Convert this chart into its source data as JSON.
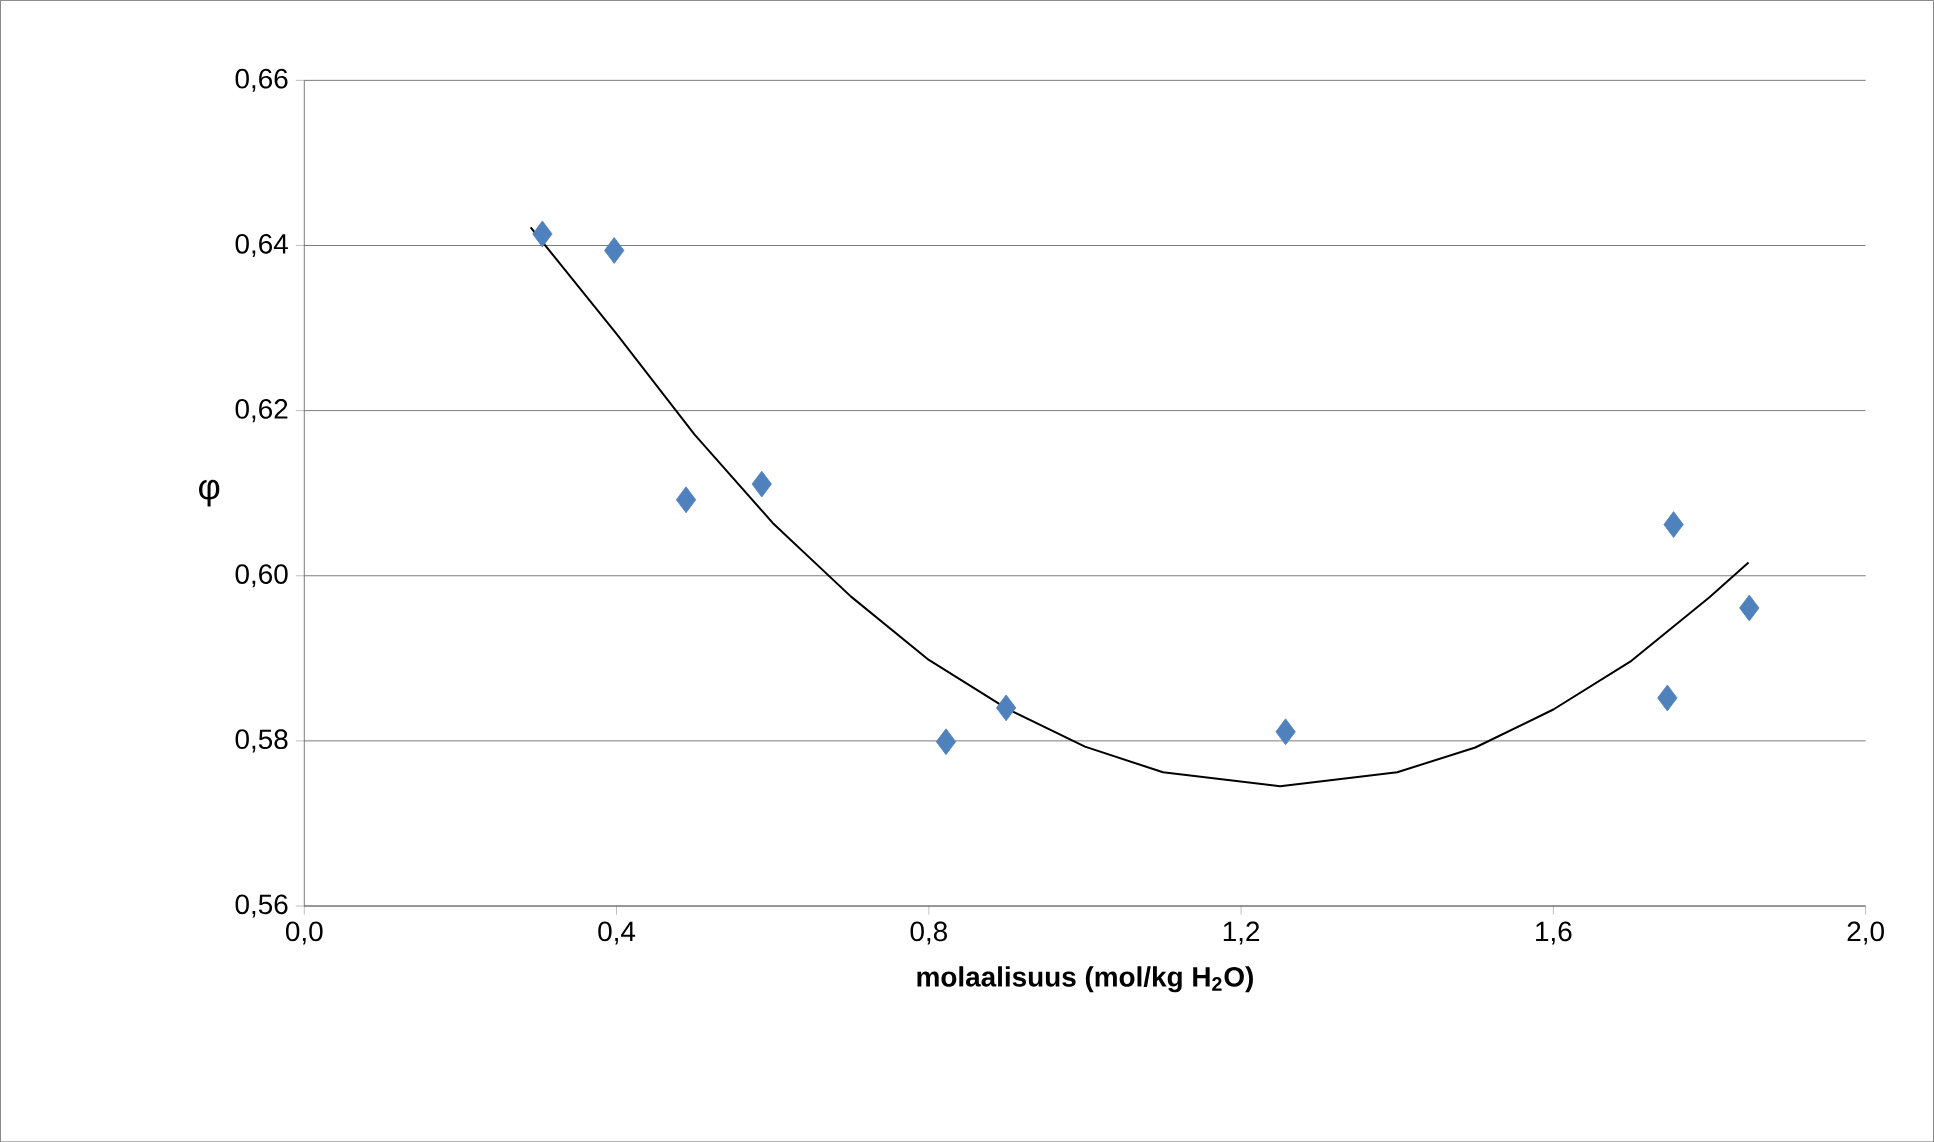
{
  "chart_data": {
    "type": "scatter",
    "xlabel": "molaalisuus (mol/kg H$_{2}$O)",
    "ylabel": "φ",
    "xlim": [
      0,
      2
    ],
    "ylim": [
      0.56,
      0.66
    ],
    "xticks": [
      {
        "value": 0,
        "label": "0,0"
      },
      {
        "value": 0.4,
        "label": "0,4"
      },
      {
        "value": 0.8,
        "label": "0,8"
      },
      {
        "value": 1.2,
        "label": "1,2"
      },
      {
        "value": 1.6,
        "label": "1,6"
      },
      {
        "value": 2.0,
        "label": "2,0"
      }
    ],
    "yticks": [
      {
        "value": 0.56,
        "label": "0,56"
      },
      {
        "value": 0.58,
        "label": "0,58"
      },
      {
        "value": 0.6,
        "label": "0,60"
      },
      {
        "value": 0.62,
        "label": "0,62"
      },
      {
        "value": 0.64,
        "label": "0,64"
      },
      {
        "value": 0.66,
        "label": "0,66"
      }
    ],
    "grid": "y",
    "series": [
      {
        "marker": "diamond",
        "color": "#4f81bd",
        "x": [
          0.305,
          0.397,
          0.489,
          0.586,
          0.822,
          0.899,
          1.257,
          1.754,
          1.746,
          1.851
        ],
        "values": [
          0.6414,
          0.6394,
          0.6092,
          0.6111,
          0.5799,
          0.584,
          0.5811,
          0.6062,
          0.5852,
          0.5961
        ]
      },
      {
        "type": "line",
        "marker": "none",
        "color": "#000000",
        "x": [
          0.29,
          0.4,
          0.5,
          0.6,
          0.7,
          0.8,
          0.9,
          1.0,
          1.1,
          1.25,
          1.4,
          1.5,
          1.6,
          1.7,
          1.8,
          1.85
        ],
        "values": [
          0.6422,
          0.6293,
          0.6171,
          0.6064,
          0.5975,
          0.5898,
          0.5839,
          0.5793,
          0.5762,
          0.5745,
          0.5762,
          0.5792,
          0.5838,
          0.5897,
          0.5974,
          0.6016
        ]
      }
    ]
  }
}
